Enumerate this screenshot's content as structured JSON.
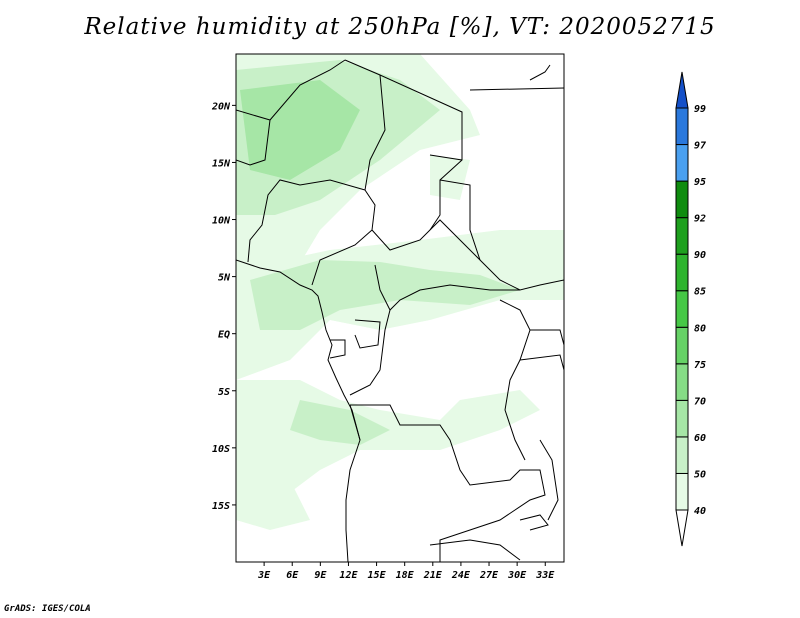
{
  "title": "Relative humidity at 250hPa [%], VT: 2020052715",
  "footer": "GrADS: IGES/COLA",
  "map": {
    "lon_range": [
      0,
      35
    ],
    "lat_range": [
      -20,
      24.5
    ],
    "lon_labels": [
      "3E",
      "6E",
      "9E",
      "12E",
      "15E",
      "18E",
      "21E",
      "24E",
      "27E",
      "30E",
      "33E"
    ],
    "lat_labels": [
      "20N",
      "15N",
      "10N",
      "5N",
      "EQ",
      "5S",
      "10S",
      "15S"
    ]
  },
  "colorbar": {
    "labels": [
      "40",
      "50",
      "60",
      "70",
      "75",
      "80",
      "85",
      "90",
      "92",
      "95",
      "97",
      "99"
    ],
    "colors": [
      "#ffffff",
      "#e6fae6",
      "#c8f0c8",
      "#a6e6a6",
      "#86dc86",
      "#66d266",
      "#46c846",
      "#2eb42e",
      "#1ea01e",
      "#0f8c0f",
      "#4aa0f0",
      "#2a78dc",
      "#1450c8"
    ]
  }
}
